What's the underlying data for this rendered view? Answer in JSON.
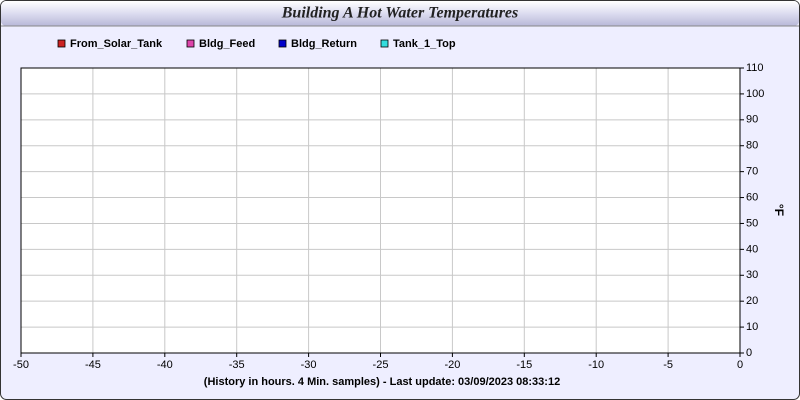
{
  "chart_data": {
    "type": "line",
    "title": "Building A Hot Water Temperatures",
    "y_label": "°F",
    "footer": "(History in hours. 4 Min. samples) - Last update: 03/09/2023 08:33:12",
    "x": [],
    "series": [
      {
        "name": "From_Solar_Tank",
        "color": "#cc2222",
        "values": []
      },
      {
        "name": "Bldg_Feed",
        "color": "#dd44aa",
        "values": []
      },
      {
        "name": "Bldg_Return",
        "color": "#0000cc",
        "values": []
      },
      {
        "name": "Tank_1_Top",
        "color": "#33dddd",
        "values": []
      }
    ],
    "xlim": [
      -50,
      0
    ],
    "xticks": [
      -50,
      -45,
      -40,
      -35,
      -30,
      -25,
      -20,
      -15,
      -10,
      -5,
      0
    ],
    "ylim": [
      0,
      110
    ],
    "yticks": [
      0,
      10,
      20,
      30,
      40,
      50,
      60,
      70,
      80,
      90,
      100,
      110
    ],
    "grid": true
  }
}
